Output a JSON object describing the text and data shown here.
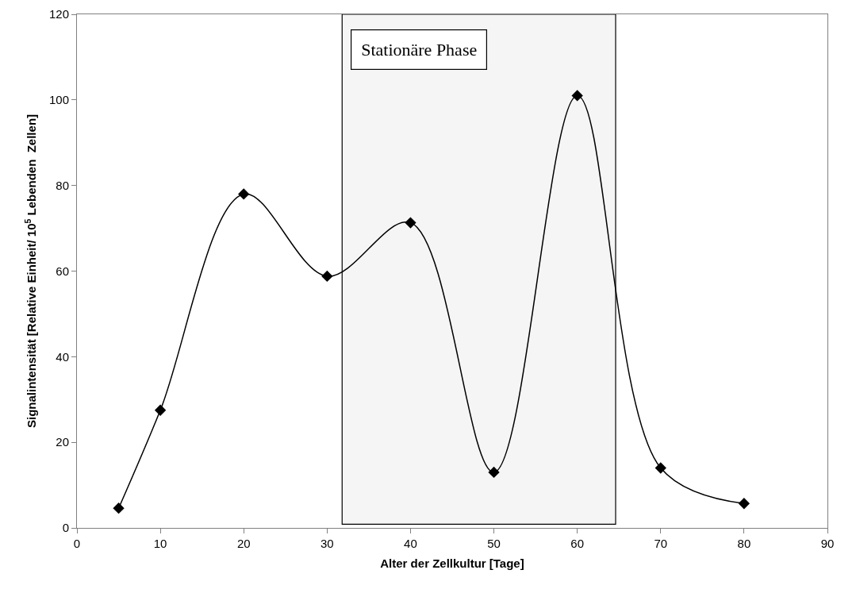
{
  "chart_data": {
    "type": "line",
    "xlabel": "Alter der Zellkultur [Tage]",
    "ylabel": "Signalintensität [Relative Einheit/ 10$^{5}$ Lebenden  Zellen]",
    "x": [
      5,
      10,
      20,
      30,
      40,
      50,
      60,
      70,
      80
    ],
    "series": [
      {
        "color": "#000000",
        "values": [
          4.6,
          27.5,
          78,
          58.8,
          71.3,
          13,
          101,
          14,
          5.7
        ]
      }
    ],
    "xlim": [
      0,
      90
    ],
    "xticks": [
      0,
      10,
      20,
      30,
      40,
      50,
      60,
      70,
      80,
      90
    ],
    "ylim": [
      0,
      120
    ],
    "yticks": [
      0,
      20,
      40,
      60,
      80,
      100,
      120
    ],
    "bands": [
      {
        "axis": "x",
        "from": 31.8,
        "to": 64.6,
        "label": "Stationäre Phase",
        "color": "#000000"
      }
    ],
    "grid": false,
    "marker": "diamond",
    "line_style": "solid"
  }
}
